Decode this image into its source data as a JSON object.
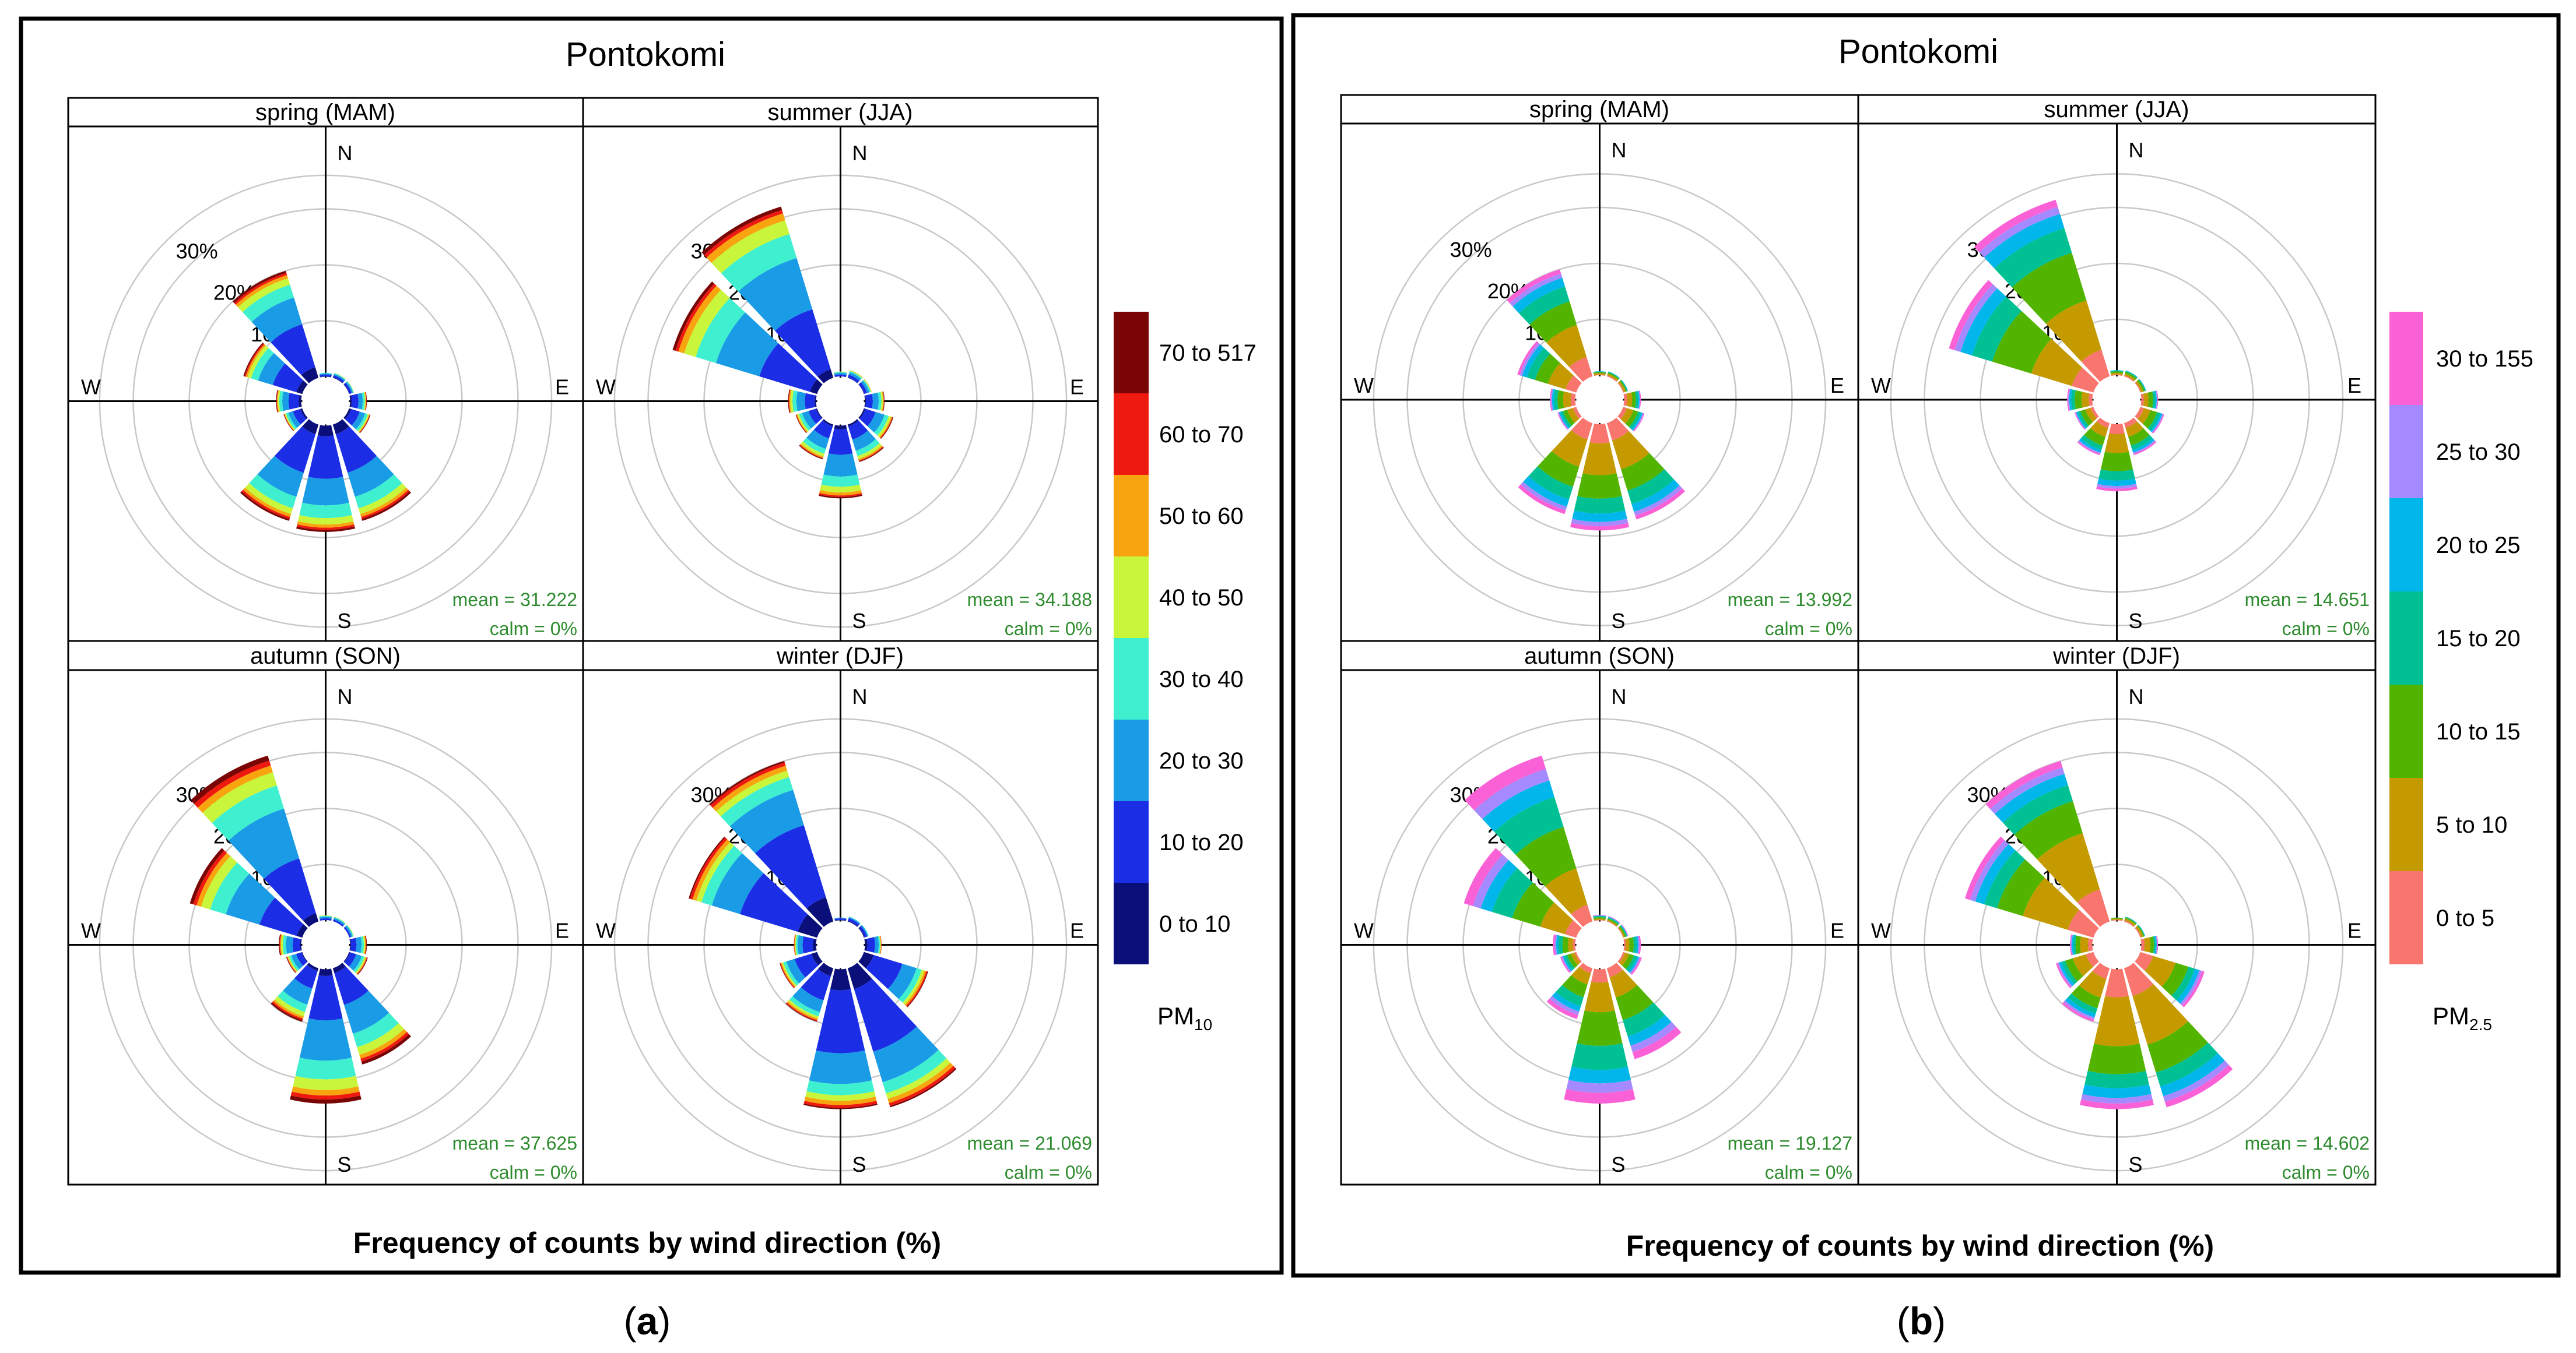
{
  "figure": {
    "panel_a": {
      "caption_letter": "a",
      "title": "Pontokomi",
      "xlabel": "Frequency of counts by wind direction (%)",
      "legend_label": "PM",
      "legend_sub": "10"
    },
    "panel_b": {
      "caption_letter": "b",
      "title": "Pontokomi",
      "xlabel": "Frequency of counts by wind direction (%)",
      "legend_label": "PM",
      "legend_sub": "2.5"
    }
  },
  "chart_data": [
    {
      "type": "windrose",
      "panel": "a",
      "title": "Pontokomi",
      "pollutant": "PM10",
      "xlabel": "Frequency of counts by wind direction (%)",
      "rings": [
        10,
        20,
        30
      ],
      "ring_labels": [
        "10%",
        "20%",
        "30%"
      ],
      "compass": [
        "N",
        "E",
        "S",
        "W"
      ],
      "legend": {
        "bins": [
          "0 to 10",
          "10 to 20",
          "20 to 30",
          "30 to 40",
          "40 to 50",
          "50 to 60",
          "60 to 70",
          "70 to 517"
        ],
        "colors": [
          "#0b0f7a",
          "#1b2ee6",
          "#1a9be6",
          "#3ef0cf",
          "#c9f53b",
          "#f7a40f",
          "#ef1a0f",
          "#7a0505"
        ]
      },
      "directions": [
        0,
        30,
        60,
        90,
        120,
        150,
        180,
        210,
        240,
        270,
        300,
        330
      ],
      "seasons": [
        {
          "name": "spring (MAM)",
          "mean_label": "mean = 31.222",
          "calm_label": "calm = 0%",
          "totals": [
            0.8,
            1.0,
            1.0,
            3.0,
            4.0,
            18.0,
            19.0,
            18.0,
            3.5,
            4.5,
            11.0,
            20.0
          ],
          "fractions": [
            0.1,
            0.4,
            0.25,
            0.12,
            0.06,
            0.03,
            0.02,
            0.02
          ]
        },
        {
          "name": "summer (JJA)",
          "mean_label": "mean = 34.188",
          "calm_label": "calm = 0%",
          "totals": [
            1.0,
            1.5,
            1.5,
            3.5,
            5.5,
            7.0,
            13.0,
            6.5,
            4.0,
            5.0,
            27.0,
            32.0
          ],
          "fractions": [
            0.05,
            0.35,
            0.3,
            0.14,
            0.08,
            0.04,
            0.02,
            0.02
          ]
        },
        {
          "name": "autumn (SON)",
          "mean_label": "mean = 37.625",
          "calm_label": "calm = 0%",
          "totals": [
            1.0,
            1.0,
            1.0,
            3.0,
            3.5,
            18.0,
            24.0,
            10.0,
            3.0,
            4.0,
            21.0,
            31.0
          ],
          "fractions": [
            0.05,
            0.33,
            0.3,
            0.14,
            0.08,
            0.04,
            0.03,
            0.03
          ]
        },
        {
          "name": "winter (DJF)",
          "mean_label": "mean = 21.069",
          "calm_label": "calm = 0%",
          "totals": [
            0.6,
            1.0,
            1.0,
            3.0,
            12.0,
            26.0,
            25.0,
            10.0,
            7.0,
            4.0,
            24.0,
            30.0
          ],
          "fractions": [
            0.15,
            0.45,
            0.22,
            0.08,
            0.04,
            0.03,
            0.02,
            0.01
          ]
        }
      ]
    },
    {
      "type": "windrose",
      "panel": "b",
      "title": "Pontokomi",
      "pollutant": "PM2.5",
      "xlabel": "Frequency of counts by wind direction (%)",
      "rings": [
        10,
        20,
        30
      ],
      "ring_labels": [
        "10%",
        "20%",
        "30%"
      ],
      "compass": [
        "N",
        "E",
        "S",
        "W"
      ],
      "legend": {
        "bins": [
          "0 to 5",
          "5 to 10",
          "10 to 15",
          "15 to 20",
          "20 to 25",
          "25 to 30",
          "30 to 155"
        ],
        "colors": [
          "#f8766d",
          "#c49a00",
          "#53b400",
          "#00c094",
          "#00b6eb",
          "#a58aff",
          "#fb61d7"
        ]
      },
      "directions": [
        0,
        30,
        60,
        90,
        120,
        150,
        180,
        210,
        240,
        270,
        300,
        330
      ],
      "seasons": [
        {
          "name": "spring (MAM)",
          "mean_label": "mean = 13.992",
          "calm_label": "calm = 0%",
          "totals": [
            0.8,
            1.0,
            1.0,
            3.0,
            4.0,
            18.0,
            19.0,
            17.0,
            3.5,
            4.5,
            11.0,
            20.0
          ],
          "fractions": [
            0.18,
            0.3,
            0.22,
            0.14,
            0.08,
            0.04,
            0.04
          ]
        },
        {
          "name": "summer (JJA)",
          "mean_label": "mean = 14.651",
          "calm_label": "calm = 0%",
          "totals": [
            1.0,
            1.2,
            1.2,
            3.0,
            4.5,
            6.0,
            12.0,
            6.0,
            3.5,
            4.5,
            27.0,
            33.0
          ],
          "fractions": [
            0.15,
            0.28,
            0.27,
            0.14,
            0.08,
            0.04,
            0.04
          ]
        },
        {
          "name": "autumn (SON)",
          "mean_label": "mean = 19.127",
          "calm_label": "calm = 0%",
          "totals": [
            1.0,
            1.0,
            1.0,
            3.0,
            3.5,
            17.0,
            24.0,
            9.5,
            3.0,
            4.0,
            21.0,
            31.0
          ],
          "fractions": [
            0.1,
            0.22,
            0.25,
            0.18,
            0.1,
            0.07,
            0.08
          ]
        },
        {
          "name": "winter (DJF)",
          "mean_label": "mean = 14.602",
          "calm_label": "calm = 0%",
          "totals": [
            0.6,
            1.0,
            1.0,
            3.0,
            12.0,
            26.0,
            25.0,
            10.0,
            7.0,
            4.0,
            24.0,
            30.0
          ],
          "fractions": [
            0.2,
            0.35,
            0.2,
            0.1,
            0.07,
            0.04,
            0.04
          ]
        }
      ]
    }
  ]
}
